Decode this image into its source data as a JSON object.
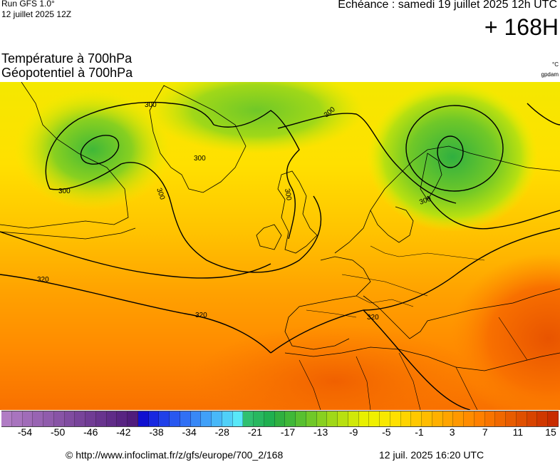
{
  "header": {
    "run_title": "Run GFS 1.0°",
    "run_date": "12 juillet 2025 12Z",
    "echeance": "Echéance : samedi 19 juillet 2025 12h UTC",
    "lead_time": "+ 168H"
  },
  "variables": {
    "line1": "Température à 700hPa",
    "line2": "Géopotentiel à 700hPa",
    "unit_temperature": "°C",
    "unit_geopotential": "gpdam"
  },
  "map": {
    "contour_labels": [
      "300",
      "300",
      "300",
      "300",
      "300",
      "300",
      "300",
      "320",
      "320",
      "320"
    ]
  },
  "legend": {
    "colors": [
      "#b07cc4",
      "#a874be",
      "#a06cb8",
      "#9864b2",
      "#905cac",
      "#8854a6",
      "#804ca0",
      "#78449a",
      "#703c94",
      "#68348e",
      "#602c88",
      "#582482",
      "#501c7c",
      "#1010d0",
      "#1828e0",
      "#2040e8",
      "#2858f0",
      "#3070f4",
      "#3888f6",
      "#40a0f8",
      "#48b8f8",
      "#50d0f8",
      "#58e8f8",
      "#30c070",
      "#28b860",
      "#20b050",
      "#30b040",
      "#40b838",
      "#58c030",
      "#70c828",
      "#88d020",
      "#a0d818",
      "#b8e010",
      "#d0e808",
      "#e8f000",
      "#f0f000",
      "#f8e800",
      "#ffe000",
      "#ffd400",
      "#ffc800",
      "#ffbc00",
      "#ffb000",
      "#ffa400",
      "#ff9800",
      "#ff8c00",
      "#ff8000",
      "#f87400",
      "#f06800",
      "#e85c00",
      "#e05000",
      "#d84400",
      "#d03800",
      "#c82c00"
    ],
    "ticks": [
      "-54",
      "-50",
      "-46",
      "-42",
      "-38",
      "-34",
      "-28",
      "-21",
      "-17",
      "-13",
      "-9",
      "-5",
      "-1",
      "3",
      "7",
      "11",
      "15"
    ]
  },
  "footer": {
    "copyright": "© http://www.infoclimat.fr/z/gfs/europe/700_2/168",
    "generated": "12 juil. 2025 16:20 UTC"
  }
}
